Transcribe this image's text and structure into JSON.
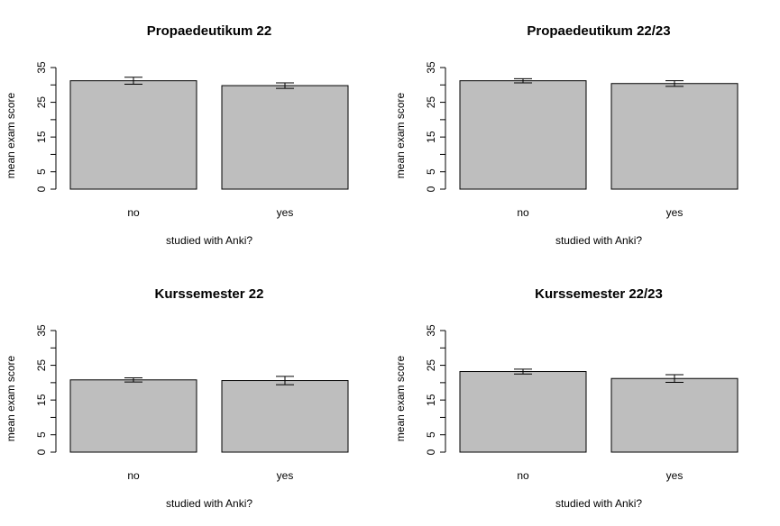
{
  "chart_data": [
    {
      "type": "bar",
      "title": "Propaedeutikum 22",
      "xlabel": "studied with Anki?",
      "ylabel": "mean exam score",
      "categories": [
        "no",
        "yes"
      ],
      "values": [
        31.2,
        29.8
      ],
      "error": [
        1.0,
        0.8
      ],
      "ylim": [
        0,
        35
      ],
      "yticks": [
        0,
        5,
        15,
        25,
        35
      ],
      "bar_color": "#bebebe"
    },
    {
      "type": "bar",
      "title": "Propaedeutikum 22/23",
      "xlabel": "studied with Anki?",
      "ylabel": "mean exam score",
      "categories": [
        "no",
        "yes"
      ],
      "values": [
        31.2,
        30.4
      ],
      "error": [
        0.6,
        0.8
      ],
      "ylim": [
        0,
        35
      ],
      "yticks": [
        0,
        5,
        15,
        25,
        35
      ],
      "bar_color": "#bebebe"
    },
    {
      "type": "bar",
      "title": "Kurssemester 22",
      "xlabel": "studied with Anki?",
      "ylabel": "mean exam score",
      "categories": [
        "no",
        "yes"
      ],
      "values": [
        20.8,
        20.6
      ],
      "error": [
        0.6,
        1.2
      ],
      "ylim": [
        0,
        35
      ],
      "yticks": [
        0,
        5,
        15,
        25,
        35
      ],
      "bar_color": "#bebebe"
    },
    {
      "type": "bar",
      "title": "Kurssemester 22/23",
      "xlabel": "studied with Anki?",
      "ylabel": "mean exam score",
      "categories": [
        "no",
        "yes"
      ],
      "values": [
        23.2,
        21.2
      ],
      "error": [
        0.7,
        1.1
      ],
      "ylim": [
        0,
        35
      ],
      "yticks": [
        0,
        5,
        15,
        25,
        35
      ],
      "bar_color": "#bebebe"
    }
  ]
}
